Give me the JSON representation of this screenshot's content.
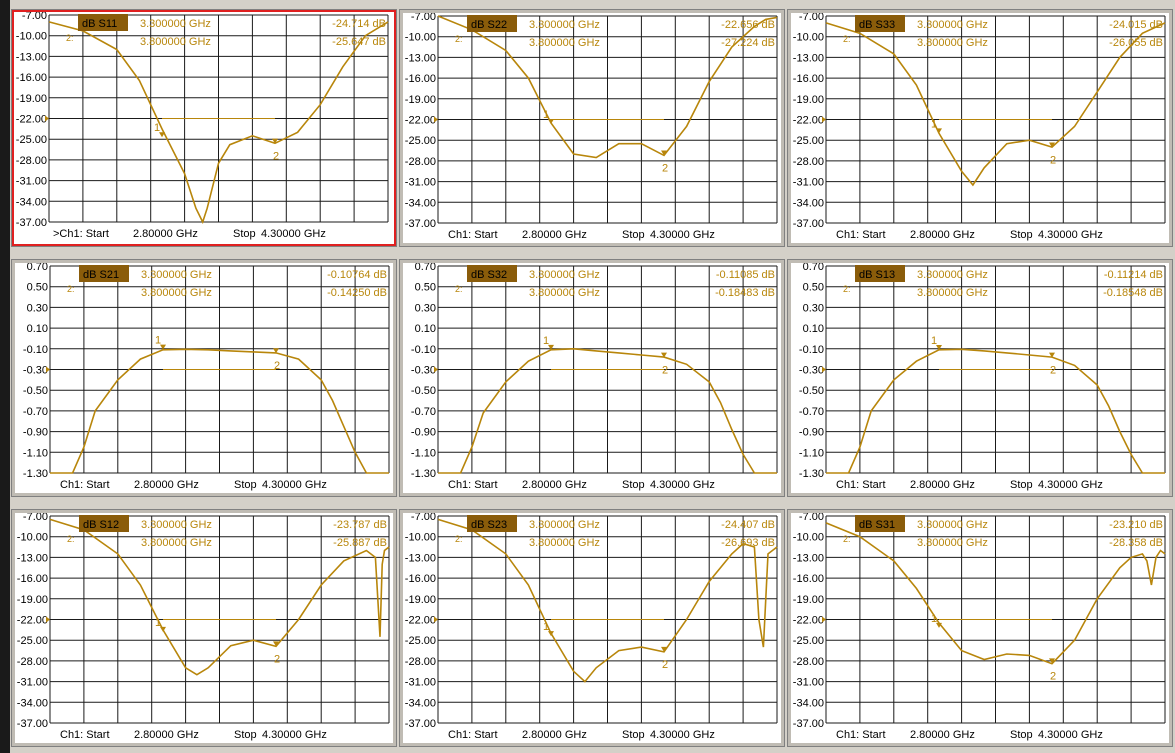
{
  "colors": {
    "trace": "#b8860b",
    "grid": "#1a1a1a",
    "label_bg": "#8a5c0a",
    "active_border": "#e02020"
  },
  "panels_order": [
    "S11",
    "S22",
    "S33",
    "S21",
    "S32",
    "S13",
    "S12",
    "S23",
    "S31"
  ],
  "stimulus": {
    "prefix": "Ch1: Start",
    "start": "2.80000 GHz",
    "stop_label": "Stop",
    "stop": "4.30000 GHz"
  },
  "chart_data": [
    {
      "type": "line",
      "trace": "dB S11",
      "active": true,
      "active_marker": ">",
      "ylim": [
        -37,
        -7
      ],
      "yticks": [
        "-7.00",
        "-10.00",
        "-13.00",
        "-16.00",
        "-19.00",
        "-22.00",
        "-25.00",
        "-28.00",
        "-31.00",
        "-34.00",
        "-37.00"
      ],
      "ref_level": -22,
      "markers": [
        {
          "id": "1",
          "freq": "3.300000 GHz",
          "value": "-24.714 dB",
          "x": 3.3,
          "y": -24.714
        },
        {
          "id": "2",
          "freq": "3.800000 GHz",
          "value": "-25.647 dB",
          "x": 3.8,
          "y": -25.647
        }
      ],
      "x": [
        2.8,
        2.95,
        3.1,
        3.2,
        3.3,
        3.4,
        3.45,
        3.48,
        3.5,
        3.55,
        3.6,
        3.7,
        3.8,
        3.9,
        4.0,
        4.1,
        4.2,
        4.3
      ],
      "values": [
        -8.0,
        -9.3,
        -12.0,
        -16.5,
        -23.5,
        -30.0,
        -35.0,
        -37.0,
        -35.0,
        -28.5,
        -25.8,
        -24.5,
        -25.6,
        -24.0,
        -20.0,
        -14.5,
        -10.0,
        -8.0
      ]
    },
    {
      "type": "line",
      "trace": "dB S22",
      "active": false,
      "ylim": [
        -37,
        -7
      ],
      "yticks": [
        "-7.00",
        "-10.00",
        "-13.00",
        "-16.00",
        "-19.00",
        "-22.00",
        "-25.00",
        "-28.00",
        "-31.00",
        "-34.00",
        "-37.00"
      ],
      "ref_level": -22,
      "markers": [
        {
          "id": "1",
          "freq": "3.300000 GHz",
          "value": "-22.656 dB",
          "x": 3.3,
          "y": -22.656
        },
        {
          "id": "2",
          "freq": "3.800000 GHz",
          "value": "-27.224 dB",
          "x": 3.8,
          "y": -27.224
        }
      ],
      "x": [
        2.8,
        2.95,
        3.1,
        3.2,
        3.3,
        3.4,
        3.5,
        3.6,
        3.7,
        3.8,
        3.9,
        4.0,
        4.1,
        4.2,
        4.25,
        4.3
      ],
      "values": [
        -7.0,
        -9.0,
        -12.0,
        -16.0,
        -22.5,
        -27.0,
        -27.5,
        -25.5,
        -25.5,
        -27.2,
        -23.0,
        -16.5,
        -11.5,
        -8.5,
        -7.5,
        -7.2
      ]
    },
    {
      "type": "line",
      "trace": "dB S33",
      "active": false,
      "ylim": [
        -37,
        -7
      ],
      "yticks": [
        "-7.00",
        "-10.00",
        "-13.00",
        "-16.00",
        "-19.00",
        "-22.00",
        "-25.00",
        "-28.00",
        "-31.00",
        "-34.00",
        "-37.00"
      ],
      "ref_level": -22,
      "markers": [
        {
          "id": "1",
          "freq": "3.300000 GHz",
          "value": "-24.015 dB",
          "x": 3.3,
          "y": -24.015
        },
        {
          "id": "2",
          "freq": "3.800000 GHz",
          "value": "-26.055 dB",
          "x": 3.8,
          "y": -26.055
        }
      ],
      "x": [
        2.8,
        2.95,
        3.1,
        3.2,
        3.3,
        3.4,
        3.45,
        3.5,
        3.6,
        3.7,
        3.8,
        3.9,
        4.0,
        4.1,
        4.2,
        4.3
      ],
      "values": [
        -8.0,
        -9.5,
        -12.5,
        -17.0,
        -24.0,
        -29.5,
        -31.5,
        -29.0,
        -25.5,
        -25.0,
        -26.0,
        -23.0,
        -18.0,
        -13.0,
        -9.5,
        -8.0
      ]
    },
    {
      "type": "line",
      "trace": "dB S21",
      "active": false,
      "ylim": [
        -1.3,
        0.7
      ],
      "yticks": [
        "0.70",
        "0.50",
        "0.30",
        "0.10",
        "-0.10",
        "-0.30",
        "-0.50",
        "-0.70",
        "-0.90",
        "-1.10",
        "-1.30"
      ],
      "ref_level": -0.3,
      "markers": [
        {
          "id": "1",
          "freq": "3.300000 GHz",
          "value": "-0.10764 dB",
          "x": 3.3,
          "y": -0.10764
        },
        {
          "id": "2",
          "freq": "3.800000 GHz",
          "value": "-0.14250 dB",
          "x": 3.8,
          "y": -0.1425
        }
      ],
      "x": [
        2.8,
        2.9,
        2.95,
        3.0,
        3.1,
        3.2,
        3.3,
        3.4,
        3.5,
        3.6,
        3.7,
        3.8,
        3.9,
        4.0,
        4.05,
        4.1,
        4.15,
        4.2,
        4.3
      ],
      "values": [
        -1.3,
        -1.3,
        -1.05,
        -0.7,
        -0.4,
        -0.2,
        -0.11,
        -0.105,
        -0.11,
        -0.12,
        -0.13,
        -0.14,
        -0.2,
        -0.4,
        -0.6,
        -0.85,
        -1.1,
        -1.3,
        -1.3
      ]
    },
    {
      "type": "line",
      "trace": "dB S32",
      "active": false,
      "ylim": [
        -1.3,
        0.7
      ],
      "yticks": [
        "0.70",
        "0.50",
        "0.30",
        "0.10",
        "-0.10",
        "-0.30",
        "-0.50",
        "-0.70",
        "-0.90",
        "-1.10",
        "-1.30"
      ],
      "ref_level": -0.3,
      "markers": [
        {
          "id": "1",
          "freq": "3.300000 GHz",
          "value": "-0.11085 dB",
          "x": 3.3,
          "y": -0.11085
        },
        {
          "id": "2",
          "freq": "3.800000 GHz",
          "value": "-0.18483 dB",
          "x": 3.8,
          "y": -0.18483
        }
      ],
      "x": [
        2.8,
        2.9,
        2.95,
        3.0,
        3.1,
        3.2,
        3.3,
        3.4,
        3.5,
        3.6,
        3.7,
        3.8,
        3.9,
        4.0,
        4.05,
        4.1,
        4.15,
        4.2,
        4.3
      ],
      "values": [
        -1.3,
        -1.3,
        -1.05,
        -0.72,
        -0.42,
        -0.22,
        -0.11,
        -0.1,
        -0.12,
        -0.14,
        -0.16,
        -0.18,
        -0.25,
        -0.42,
        -0.62,
        -0.88,
        -1.12,
        -1.3,
        -1.3
      ]
    },
    {
      "type": "line",
      "trace": "dB S13",
      "active": false,
      "ylim": [
        -1.3,
        0.7
      ],
      "yticks": [
        "0.70",
        "0.50",
        "0.30",
        "0.10",
        "-0.10",
        "-0.30",
        "-0.50",
        "-0.70",
        "-0.90",
        "-1.10",
        "-1.30"
      ],
      "ref_level": -0.3,
      "markers": [
        {
          "id": "1",
          "freq": "3.300000 GHz",
          "value": "-0.11214 dB",
          "x": 3.3,
          "y": -0.11214
        },
        {
          "id": "2",
          "freq": "3.800000 GHz",
          "value": "-0.18548 dB",
          "x": 3.8,
          "y": -0.18548
        }
      ],
      "x": [
        2.8,
        2.9,
        2.95,
        3.0,
        3.1,
        3.2,
        3.3,
        3.4,
        3.5,
        3.6,
        3.7,
        3.8,
        3.9,
        4.0,
        4.05,
        4.1,
        4.15,
        4.2,
        4.3
      ],
      "values": [
        -1.3,
        -1.3,
        -1.05,
        -0.7,
        -0.4,
        -0.22,
        -0.11,
        -0.105,
        -0.12,
        -0.14,
        -0.16,
        -0.18,
        -0.26,
        -0.45,
        -0.65,
        -0.9,
        -1.12,
        -1.3,
        -1.3
      ]
    },
    {
      "type": "line",
      "trace": "dB S12",
      "active": false,
      "ylim": [
        -37,
        -7
      ],
      "yticks": [
        "-7.00",
        "-10.00",
        "-13.00",
        "-16.00",
        "-19.00",
        "-22.00",
        "-25.00",
        "-28.00",
        "-31.00",
        "-34.00",
        "-37.00"
      ],
      "ref_level": -22,
      "markers": [
        {
          "id": "1",
          "freq": "3.300000 GHz",
          "value": "-23.787 dB",
          "x": 3.3,
          "y": -23.787
        },
        {
          "id": "2",
          "freq": "3.800000 GHz",
          "value": "-25.887 dB",
          "x": 3.8,
          "y": -25.887
        }
      ],
      "x": [
        2.8,
        2.95,
        3.1,
        3.2,
        3.3,
        3.4,
        3.45,
        3.5,
        3.6,
        3.7,
        3.8,
        3.9,
        4.0,
        4.1,
        4.2,
        4.24,
        4.26,
        4.27,
        4.28,
        4.3
      ],
      "values": [
        -7.5,
        -9.0,
        -12.5,
        -17.0,
        -23.5,
        -29.0,
        -30.0,
        -29.0,
        -25.8,
        -25.0,
        -25.9,
        -22.0,
        -17.0,
        -13.5,
        -12.0,
        -13.0,
        -24.5,
        -14.0,
        -12.0,
        -11.5
      ]
    },
    {
      "type": "line",
      "trace": "dB S23",
      "active": false,
      "ylim": [
        -37,
        -7
      ],
      "yticks": [
        "-7.00",
        "-10.00",
        "-13.00",
        "-16.00",
        "-19.00",
        "-22.00",
        "-25.00",
        "-28.00",
        "-31.00",
        "-34.00",
        "-37.00"
      ],
      "ref_level": -22,
      "markers": [
        {
          "id": "1",
          "freq": "3.300000 GHz",
          "value": "-24.407 dB",
          "x": 3.3,
          "y": -24.407
        },
        {
          "id": "2",
          "freq": "3.800000 GHz",
          "value": "-26.693 dB",
          "x": 3.8,
          "y": -26.693
        }
      ],
      "x": [
        2.8,
        2.95,
        3.1,
        3.2,
        3.3,
        3.4,
        3.45,
        3.5,
        3.6,
        3.7,
        3.8,
        3.9,
        4.0,
        4.1,
        4.15,
        4.2,
        4.22,
        4.24,
        4.26,
        4.3
      ],
      "values": [
        -7.5,
        -9.0,
        -12.5,
        -17.0,
        -24.0,
        -29.5,
        -31.0,
        -29.0,
        -26.5,
        -26.0,
        -26.7,
        -22.0,
        -16.5,
        -12.5,
        -11.0,
        -11.5,
        -22.0,
        -26.0,
        -12.5,
        -11.5
      ]
    },
    {
      "type": "line",
      "trace": "dB S31",
      "active": false,
      "ylim": [
        -37,
        -7
      ],
      "yticks": [
        "-7.00",
        "-10.00",
        "-13.00",
        "-16.00",
        "-19.00",
        "-22.00",
        "-25.00",
        "-28.00",
        "-31.00",
        "-34.00",
        "-37.00"
      ],
      "ref_level": -22,
      "markers": [
        {
          "id": "1",
          "freq": "3.300000 GHz",
          "value": "-23.210 dB",
          "x": 3.3,
          "y": -23.21
        },
        {
          "id": "2",
          "freq": "3.800000 GHz",
          "value": "-28.358 dB",
          "x": 3.8,
          "y": -28.358
        }
      ],
      "x": [
        2.8,
        2.95,
        3.1,
        3.2,
        3.3,
        3.4,
        3.5,
        3.6,
        3.7,
        3.8,
        3.9,
        4.0,
        4.1,
        4.15,
        4.2,
        4.22,
        4.24,
        4.26,
        4.28,
        4.3
      ],
      "values": [
        -8.0,
        -10.0,
        -13.5,
        -17.5,
        -22.5,
        -26.5,
        -27.8,
        -27.0,
        -27.2,
        -28.4,
        -25.0,
        -19.0,
        -14.5,
        -13.0,
        -12.5,
        -13.5,
        -17.0,
        -13.0,
        -12.0,
        -12.5
      ]
    }
  ]
}
